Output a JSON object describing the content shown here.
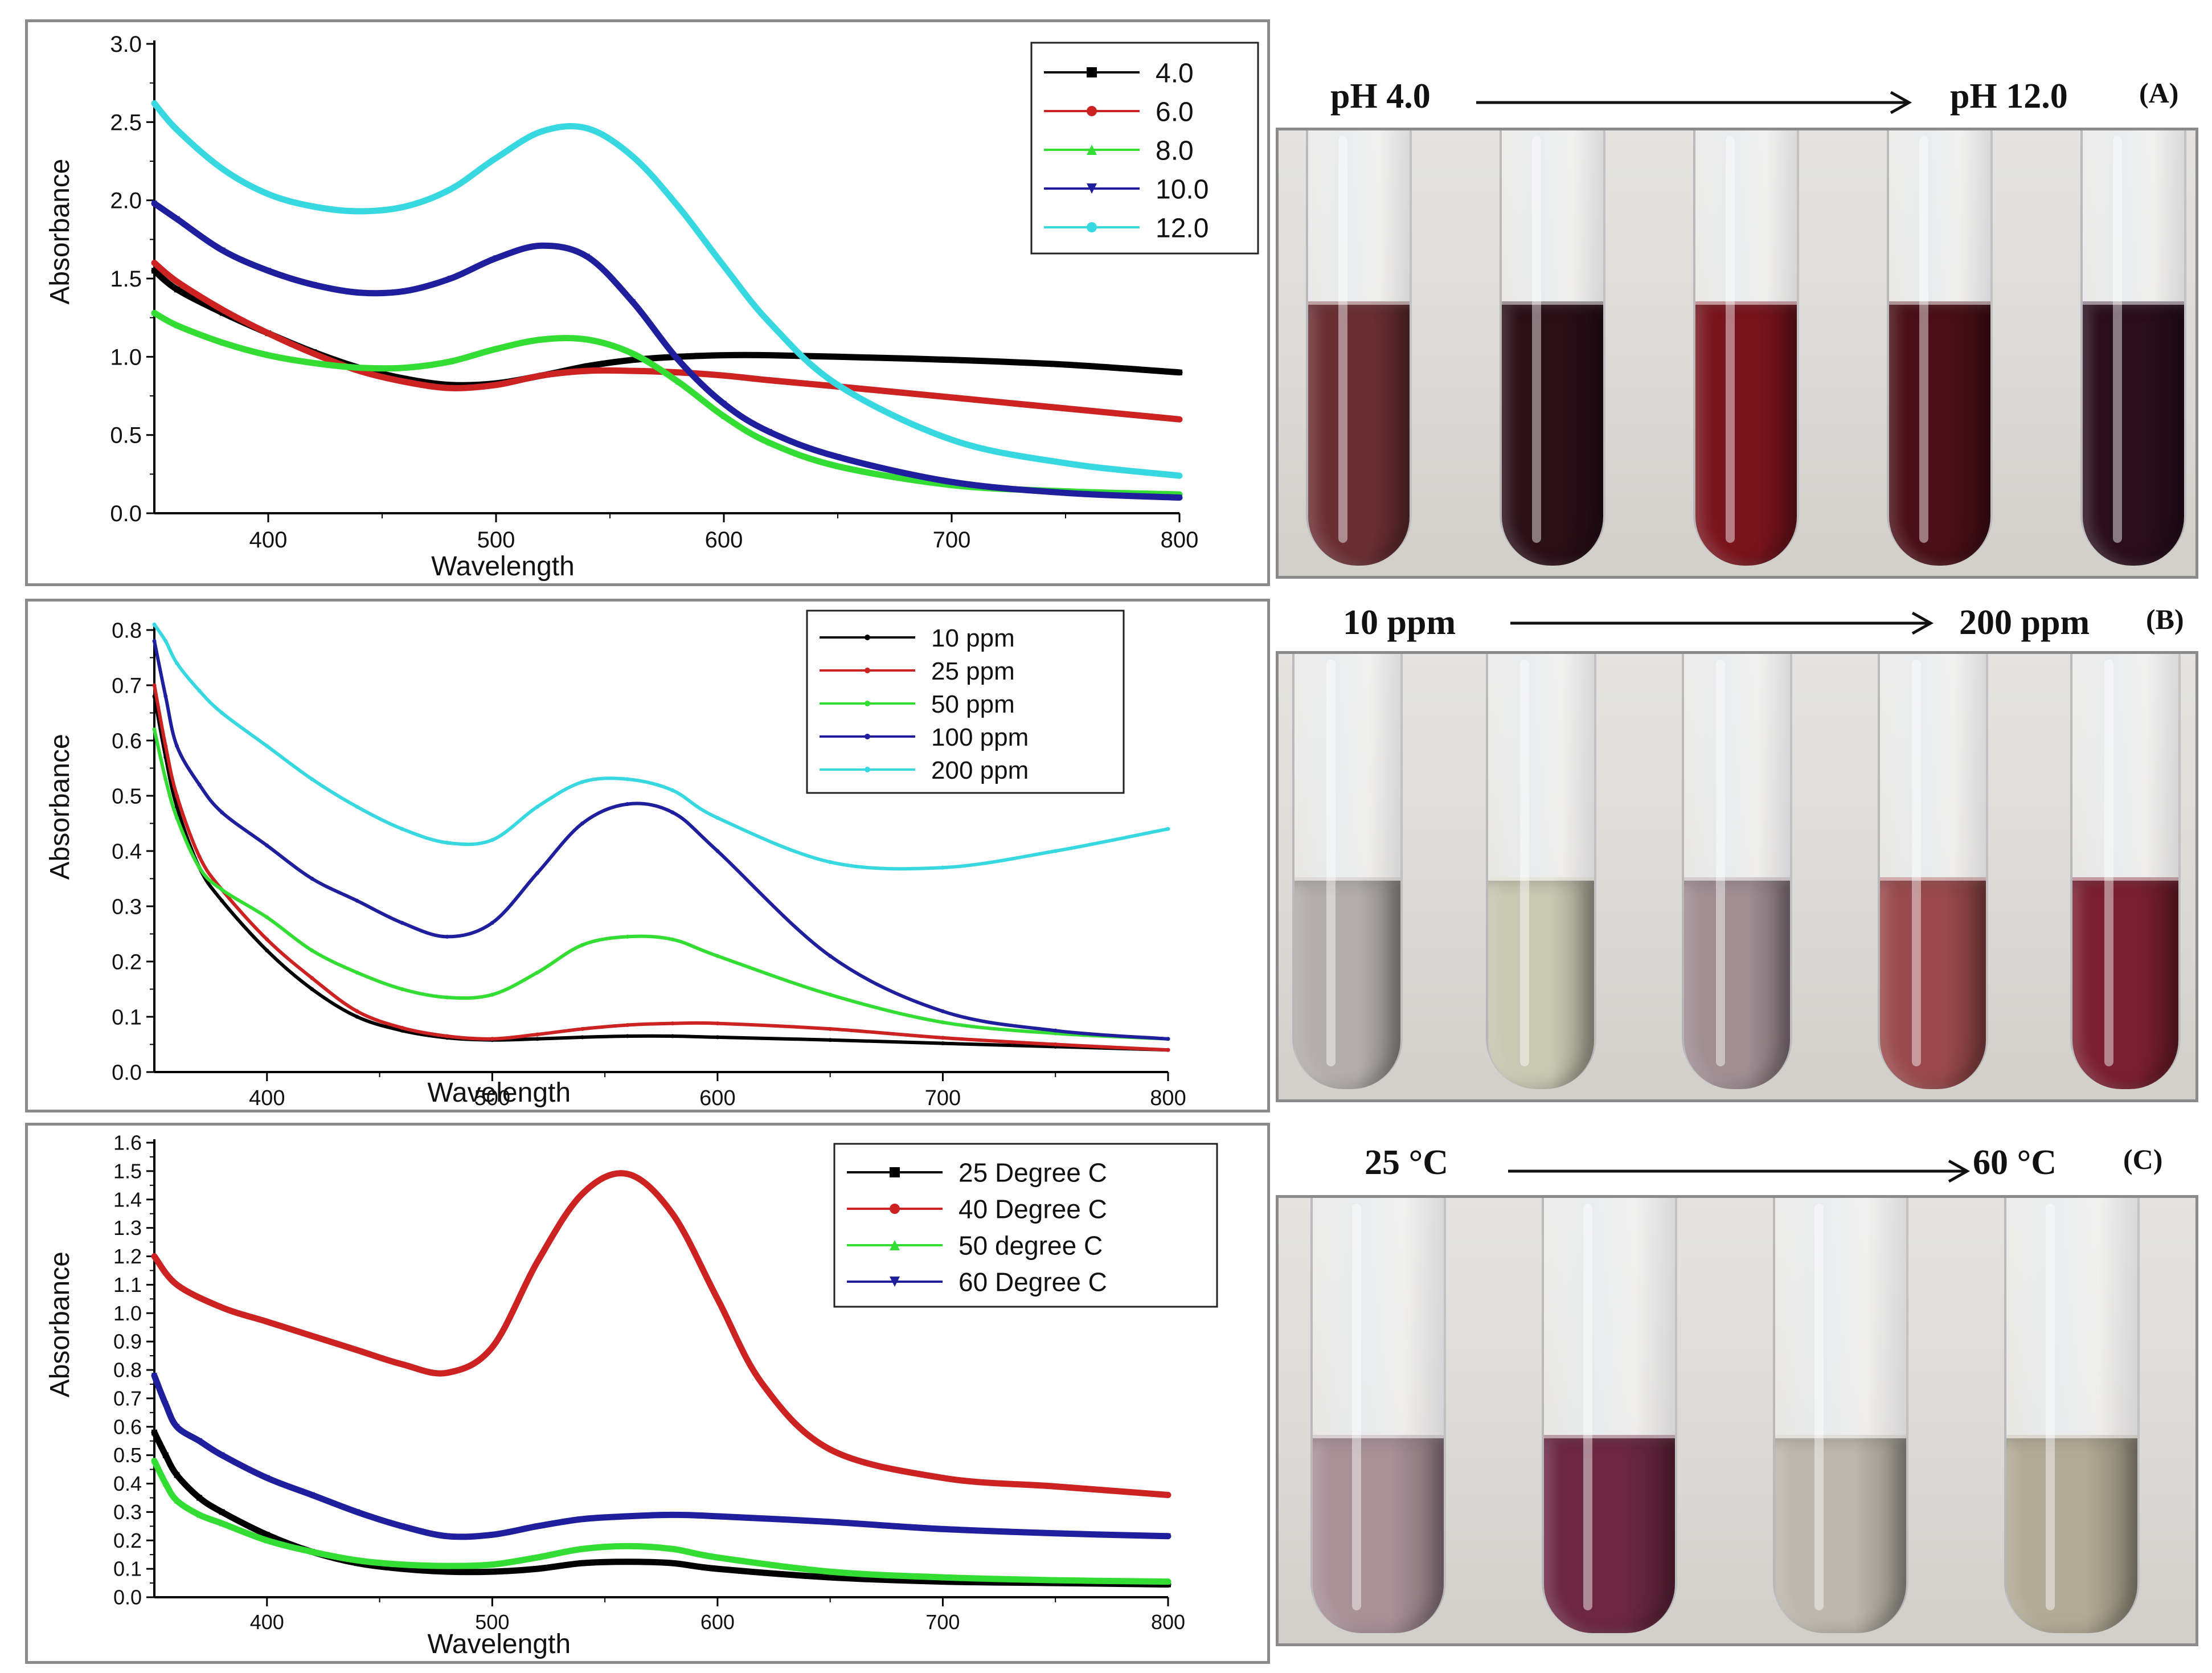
{
  "chart_data": [
    {
      "id": "A",
      "type": "line",
      "title": "",
      "xlabel": "Wavelength",
      "ylabel": "Absorbance",
      "xlim": [
        350,
        800
      ],
      "ylim": [
        0,
        3.0
      ],
      "xticks": [
        400,
        500,
        600,
        700,
        800
      ],
      "yticks": [
        0.0,
        0.5,
        1.0,
        1.5,
        2.0,
        2.5,
        3.0
      ],
      "ytick_labels": [
        "0.0",
        "0.5",
        "1.0",
        "1.5",
        "2.0",
        "2.5",
        "3.0"
      ],
      "legend_position": "top-right",
      "series": [
        {
          "name": "4.0",
          "color": "#000000",
          "marker": "square",
          "x": [
            350,
            360,
            380,
            400,
            420,
            440,
            460,
            480,
            500,
            520,
            540,
            560,
            580,
            600,
            620,
            650,
            700,
            750,
            800
          ],
          "y": [
            1.55,
            1.43,
            1.28,
            1.15,
            1.03,
            0.93,
            0.86,
            0.82,
            0.83,
            0.88,
            0.94,
            0.98,
            1.0,
            1.01,
            1.01,
            1.0,
            0.98,
            0.95,
            0.9
          ]
        },
        {
          "name": "6.0",
          "color": "#cc2222",
          "marker": "circle",
          "x": [
            350,
            360,
            380,
            400,
            420,
            440,
            460,
            480,
            500,
            520,
            540,
            560,
            580,
            600,
            620,
            650,
            700,
            750,
            800
          ],
          "y": [
            1.6,
            1.48,
            1.3,
            1.15,
            1.02,
            0.91,
            0.84,
            0.8,
            0.82,
            0.88,
            0.91,
            0.91,
            0.9,
            0.88,
            0.85,
            0.81,
            0.74,
            0.67,
            0.6
          ]
        },
        {
          "name": "8.0",
          "color": "#33dd33",
          "marker": "triangle-up",
          "x": [
            350,
            360,
            380,
            400,
            420,
            440,
            460,
            480,
            500,
            520,
            540,
            560,
            580,
            600,
            620,
            650,
            700,
            750,
            800
          ],
          "y": [
            1.28,
            1.2,
            1.09,
            1.01,
            0.96,
            0.93,
            0.93,
            0.97,
            1.05,
            1.11,
            1.11,
            1.02,
            0.84,
            0.62,
            0.45,
            0.3,
            0.18,
            0.14,
            0.12
          ]
        },
        {
          "name": "10.0",
          "color": "#1f1f9e",
          "marker": "triangle-down",
          "x": [
            350,
            360,
            380,
            400,
            420,
            440,
            460,
            480,
            500,
            520,
            540,
            560,
            580,
            600,
            620,
            650,
            700,
            750,
            800
          ],
          "y": [
            1.98,
            1.88,
            1.68,
            1.55,
            1.46,
            1.41,
            1.42,
            1.5,
            1.63,
            1.71,
            1.64,
            1.35,
            0.98,
            0.7,
            0.52,
            0.36,
            0.2,
            0.13,
            0.1
          ]
        },
        {
          "name": "12.0",
          "color": "#38d8e0",
          "marker": "circle",
          "x": [
            350,
            360,
            380,
            400,
            420,
            440,
            460,
            480,
            500,
            520,
            540,
            560,
            580,
            600,
            620,
            650,
            700,
            750,
            800
          ],
          "y": [
            2.62,
            2.45,
            2.2,
            2.04,
            1.96,
            1.93,
            1.96,
            2.07,
            2.27,
            2.44,
            2.46,
            2.28,
            1.96,
            1.58,
            1.22,
            0.82,
            0.47,
            0.32,
            0.24
          ]
        }
      ]
    },
    {
      "id": "B",
      "type": "line",
      "title": "",
      "xlabel": "Wavelength",
      "ylabel": "Absorbance",
      "xlim": [
        350,
        800
      ],
      "ylim": [
        0,
        0.8
      ],
      "xticks": [
        400,
        500,
        600,
        700,
        800
      ],
      "yticks": [
        0.0,
        0.1,
        0.2,
        0.3,
        0.4,
        0.5,
        0.6,
        0.7,
        0.8
      ],
      "ytick_labels": [
        "0.0",
        "0.1",
        "0.2",
        "0.3",
        "0.4",
        "0.5",
        "0.6",
        "0.7",
        "0.8"
      ],
      "legend_position": "top-right",
      "series": [
        {
          "name": "10 ppm",
          "color": "#000000",
          "marker": "dot",
          "x": [
            350,
            355,
            360,
            370,
            380,
            400,
            420,
            440,
            460,
            480,
            500,
            520,
            540,
            560,
            580,
            600,
            650,
            700,
            750,
            800
          ],
          "y": [
            0.68,
            0.57,
            0.48,
            0.37,
            0.31,
            0.22,
            0.15,
            0.1,
            0.075,
            0.062,
            0.058,
            0.06,
            0.063,
            0.065,
            0.065,
            0.063,
            0.058,
            0.052,
            0.046,
            0.04
          ]
        },
        {
          "name": "25 ppm",
          "color": "#cc2222",
          "marker": "dot",
          "x": [
            350,
            355,
            360,
            370,
            380,
            400,
            420,
            440,
            460,
            480,
            500,
            520,
            540,
            560,
            580,
            600,
            650,
            700,
            750,
            800
          ],
          "y": [
            0.7,
            0.59,
            0.5,
            0.39,
            0.33,
            0.24,
            0.17,
            0.11,
            0.08,
            0.065,
            0.06,
            0.068,
            0.078,
            0.085,
            0.088,
            0.088,
            0.078,
            0.062,
            0.05,
            0.04
          ]
        },
        {
          "name": "50 ppm",
          "color": "#33dd33",
          "marker": "dot",
          "x": [
            350,
            355,
            360,
            370,
            380,
            400,
            420,
            440,
            460,
            480,
            500,
            520,
            540,
            560,
            580,
            600,
            650,
            700,
            750,
            800
          ],
          "y": [
            0.62,
            0.53,
            0.46,
            0.37,
            0.33,
            0.28,
            0.22,
            0.18,
            0.15,
            0.135,
            0.14,
            0.18,
            0.23,
            0.245,
            0.24,
            0.21,
            0.14,
            0.09,
            0.07,
            0.06
          ]
        },
        {
          "name": "100 ppm",
          "color": "#1f1f9e",
          "marker": "dot",
          "x": [
            350,
            355,
            360,
            370,
            380,
            400,
            420,
            440,
            460,
            480,
            500,
            520,
            540,
            560,
            580,
            600,
            650,
            700,
            750,
            800
          ],
          "y": [
            0.78,
            0.68,
            0.59,
            0.52,
            0.47,
            0.41,
            0.35,
            0.31,
            0.27,
            0.245,
            0.27,
            0.36,
            0.45,
            0.485,
            0.47,
            0.4,
            0.21,
            0.11,
            0.075,
            0.06
          ]
        },
        {
          "name": "200 ppm",
          "color": "#38d8e0",
          "marker": "dot",
          "x": [
            350,
            355,
            360,
            370,
            380,
            400,
            420,
            440,
            460,
            480,
            500,
            520,
            540,
            560,
            580,
            600,
            650,
            700,
            750,
            800
          ],
          "y": [
            0.81,
            0.78,
            0.74,
            0.69,
            0.65,
            0.59,
            0.53,
            0.48,
            0.44,
            0.415,
            0.42,
            0.48,
            0.525,
            0.53,
            0.51,
            0.46,
            0.38,
            0.37,
            0.4,
            0.44
          ]
        }
      ]
    },
    {
      "id": "C",
      "type": "line",
      "title": "",
      "xlabel": "Wavelength",
      "ylabel": "Absorbance",
      "xlim": [
        350,
        800
      ],
      "ylim": [
        0,
        1.6
      ],
      "xticks": [
        400,
        500,
        600,
        700,
        800
      ],
      "yticks": [
        0.0,
        0.1,
        0.2,
        0.3,
        0.4,
        0.5,
        0.6,
        0.7,
        0.8,
        0.9,
        1.0,
        1.1,
        1.2,
        1.3,
        1.4,
        1.5,
        1.6
      ],
      "ytick_labels": [
        "0.0",
        "0.1",
        "0.2",
        "0.3",
        "0.4",
        "0.5",
        "0.6",
        "0.7",
        "0.8",
        "0.9",
        "1.0",
        "1.1",
        "1.2",
        "1.3",
        "1.4",
        "1.5",
        "1.6"
      ],
      "legend_position": "top-right",
      "series": [
        {
          "name": "25 Degree C",
          "color": "#000000",
          "marker": "square",
          "x": [
            350,
            355,
            360,
            370,
            380,
            400,
            420,
            440,
            460,
            480,
            500,
            520,
            540,
            560,
            580,
            600,
            650,
            700,
            750,
            800
          ],
          "y": [
            0.58,
            0.5,
            0.43,
            0.35,
            0.3,
            0.22,
            0.16,
            0.12,
            0.1,
            0.09,
            0.09,
            0.1,
            0.12,
            0.125,
            0.12,
            0.1,
            0.07,
            0.055,
            0.05,
            0.045
          ]
        },
        {
          "name": "40 Degree C",
          "color": "#cc2222",
          "marker": "circle",
          "x": [
            350,
            360,
            380,
            400,
            420,
            440,
            460,
            480,
            500,
            520,
            540,
            560,
            580,
            600,
            620,
            650,
            700,
            750,
            800
          ],
          "y": [
            1.2,
            1.1,
            1.02,
            0.97,
            0.92,
            0.87,
            0.82,
            0.79,
            0.88,
            1.18,
            1.42,
            1.49,
            1.35,
            1.05,
            0.75,
            0.52,
            0.42,
            0.39,
            0.36
          ]
        },
        {
          "name": "50 degree C",
          "color": "#33dd33",
          "marker": "triangle-up",
          "x": [
            350,
            355,
            360,
            370,
            380,
            400,
            420,
            440,
            460,
            480,
            500,
            520,
            540,
            560,
            580,
            600,
            650,
            700,
            750,
            800
          ],
          "y": [
            0.48,
            0.4,
            0.34,
            0.29,
            0.26,
            0.2,
            0.16,
            0.13,
            0.115,
            0.11,
            0.115,
            0.14,
            0.17,
            0.18,
            0.17,
            0.14,
            0.09,
            0.07,
            0.06,
            0.055
          ]
        },
        {
          "name": "60 Degree C",
          "color": "#1f1f9e",
          "marker": "triangle-down",
          "x": [
            350,
            355,
            360,
            370,
            380,
            400,
            420,
            440,
            460,
            480,
            500,
            520,
            540,
            560,
            580,
            600,
            650,
            700,
            750,
            800
          ],
          "y": [
            0.78,
            0.68,
            0.6,
            0.55,
            0.5,
            0.42,
            0.36,
            0.3,
            0.25,
            0.215,
            0.22,
            0.25,
            0.275,
            0.285,
            0.29,
            0.285,
            0.265,
            0.24,
            0.225,
            0.215
          ]
        }
      ]
    }
  ],
  "photos": [
    {
      "id": "A",
      "start_label": "pH 4.0",
      "end_label": "pH 12.0",
      "tag": "(A)",
      "tube_colors": [
        "#6b2f33",
        "#2a0f17",
        "#7a141d",
        "#4a0f18",
        "#2a0e1c"
      ]
    },
    {
      "id": "B",
      "start_label": "10 ppm",
      "end_label": "200 ppm",
      "tag": "(B)",
      "tube_colors": [
        "#b3aeab",
        "#c8c8b3",
        "#a08e93",
        "#9a4a4c",
        "#7a1f30"
      ]
    },
    {
      "id": "C",
      "start_label": "25 °C",
      "end_label": "60 °C",
      "tag": "(C)",
      "tube_colors": [
        "#a99198",
        "#6c2841",
        "#bdb8ae",
        "#b2ab96"
      ]
    }
  ]
}
